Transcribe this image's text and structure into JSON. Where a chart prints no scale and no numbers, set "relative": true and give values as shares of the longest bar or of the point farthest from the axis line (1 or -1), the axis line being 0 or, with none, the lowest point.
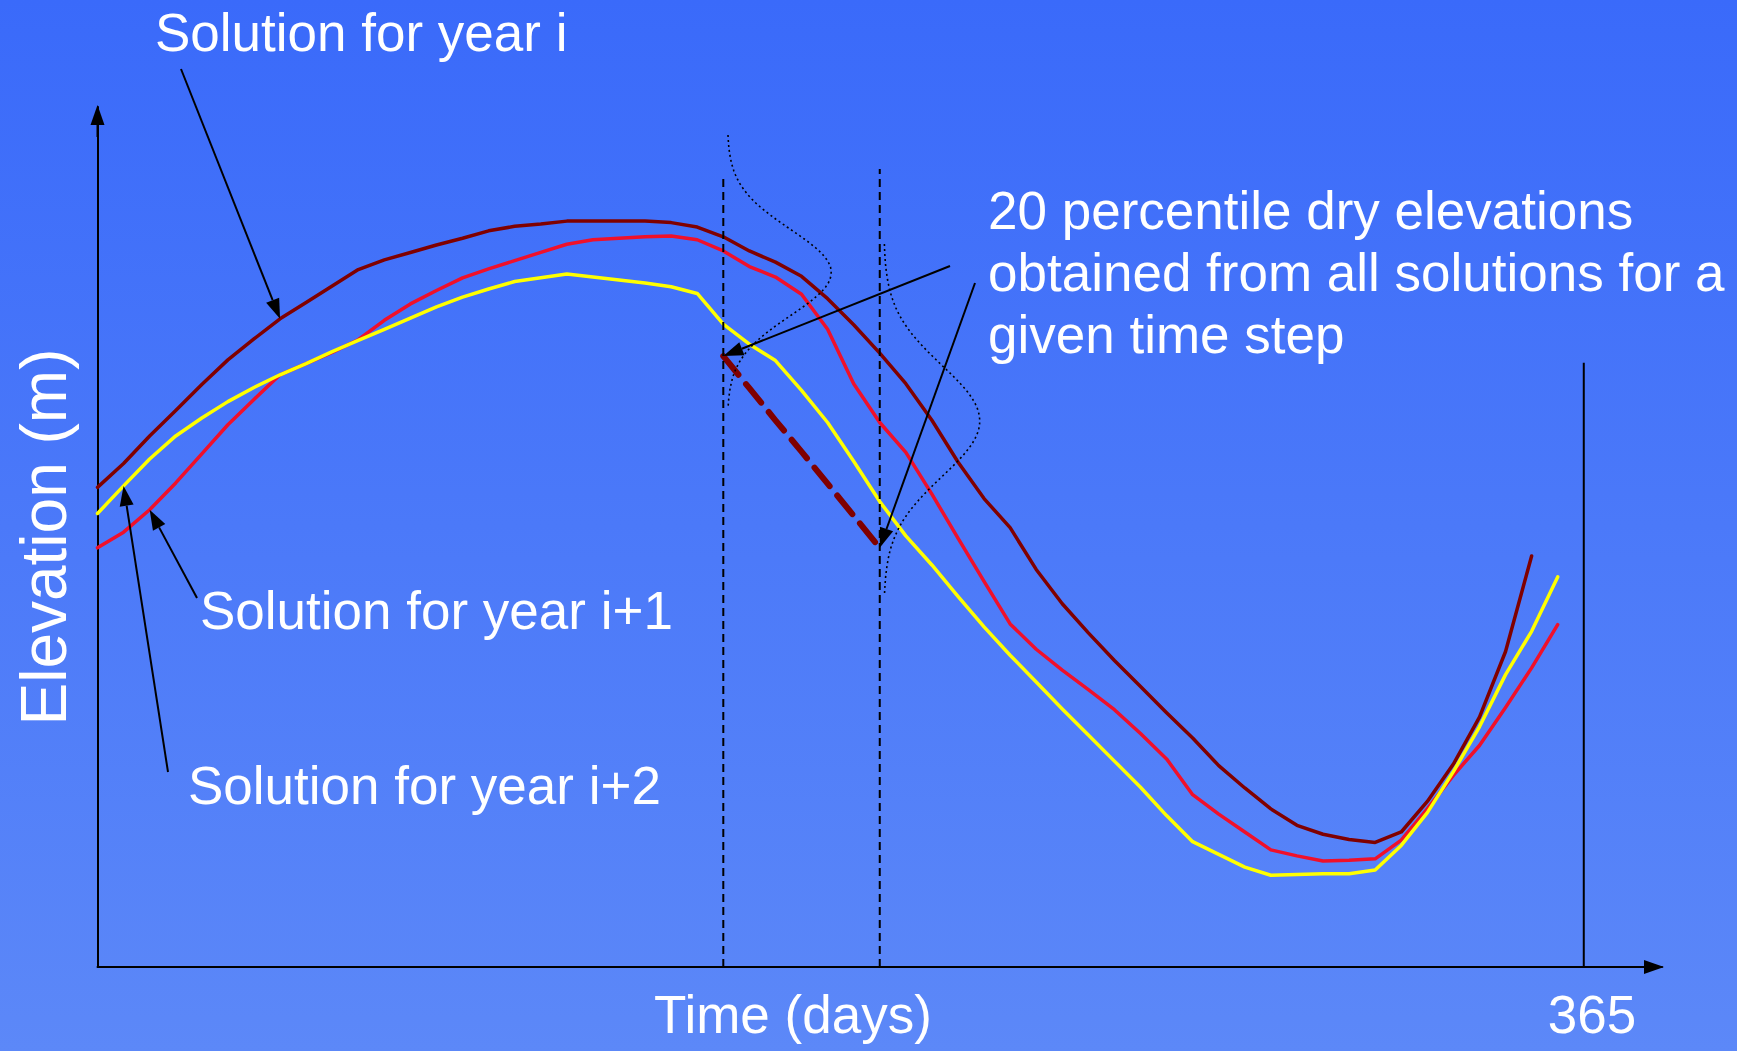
{
  "chart_data": {
    "type": "line",
    "relative": true,
    "xlabel": "Time (days)",
    "ylabel": "Elevation (m)",
    "marker": "none",
    "categories": [
      null,
      null,
      null,
      null,
      null,
      null,
      null,
      null,
      null,
      null,
      null,
      null,
      null,
      null,
      null,
      null,
      null,
      null,
      null,
      null,
      null,
      null,
      null,
      null,
      null,
      null,
      null,
      null,
      null,
      null,
      null,
      null,
      null,
      null,
      null,
      null,
      null,
      null,
      null,
      null,
      null,
      null,
      null,
      null,
      null,
      null,
      null,
      null,
      null,
      null,
      null,
      null,
      null,
      null,
      null,
      null,
      null,
      null,
      null,
      null,
      null
    ],
    "series": [
      {
        "color": "#800000",
        "values": [
          0.643,
          0.675,
          0.712,
          0.746,
          0.781,
          0.814,
          0.842,
          0.869,
          0.891,
          0.913,
          0.935,
          0.948,
          0.958,
          0.968,
          0.977,
          0.987,
          0.993,
          0.996,
          1,
          1,
          1,
          1,
          0.998,
          0.992,
          0.979,
          0.96,
          0.945,
          0.926,
          0.896,
          0.861,
          0.823,
          0.782,
          0.733,
          0.677,
          0.628,
          0.589,
          0.533,
          0.487,
          0.448,
          0.411,
          0.376,
          0.341,
          0.307,
          0.27,
          0.24,
          0.212,
          0.19,
          0.178,
          0.171,
          0.167,
          0.181,
          0.222,
          0.272,
          0.335,
          0.423,
          0.551,
          null,
          null,
          null,
          null,
          null
        ]
      },
      {
        "color": "#f0102a",
        "values": [
          0.562,
          0.583,
          0.613,
          0.649,
          0.688,
          0.727,
          0.761,
          0.794,
          0.809,
          0.824,
          0.841,
          0.867,
          0.889,
          0.907,
          0.924,
          0.936,
          0.947,
          0.958,
          0.969,
          0.975,
          0.977,
          0.979,
          0.98,
          0.975,
          0.96,
          0.939,
          0.925,
          0.902,
          0.855,
          0.782,
          0.73,
          0.69,
          0.634,
          0.575,
          0.517,
          0.46,
          0.426,
          0.398,
          0.372,
          0.345,
          0.313,
          0.279,
          0.231,
          0.205,
          0.181,
          0.157,
          0.149,
          0.142,
          0.143,
          0.145,
          0.17,
          0.212,
          0.257,
          0.297,
          0.348,
          0.401,
          0.459,
          null,
          null,
          null,
          null
        ]
      },
      {
        "color": "#ffff00",
        "values": [
          0.608,
          0.645,
          0.681,
          0.712,
          0.736,
          0.758,
          0.777,
          0.794,
          0.809,
          0.825,
          0.84,
          0.855,
          0.87,
          0.885,
          0.898,
          0.909,
          0.919,
          0.924,
          0.929,
          0.925,
          0.921,
          0.917,
          0.912,
          0.903,
          0.862,
          0.835,
          0.813,
          0.773,
          0.73,
          0.678,
          0.624,
          0.578,
          0.539,
          0.497,
          0.456,
          0.418,
          0.382,
          0.346,
          0.311,
          0.276,
          0.241,
          0.203,
          0.168,
          0.151,
          0.134,
          0.123,
          0.124,
          0.125,
          0.125,
          0.13,
          0.163,
          0.207,
          0.262,
          0.322,
          0.392,
          0.45,
          0.523,
          null,
          null,
          null,
          null
        ]
      },
      {
        "color": "#800000",
        "line_style": "dashed",
        "values": [
          null,
          null,
          null,
          null,
          null,
          null,
          null,
          null,
          null,
          null,
          null,
          null,
          null,
          null,
          null,
          null,
          null,
          null,
          null,
          null,
          null,
          null,
          null,
          null,
          0.819,
          0.776,
          0.733,
          0.691,
          0.648,
          0.605,
          0.562,
          null,
          null,
          null,
          null,
          null,
          null,
          null,
          null,
          null,
          null,
          null,
          null,
          null,
          null,
          null,
          null,
          null,
          null,
          null,
          null,
          null,
          null,
          null,
          null,
          null,
          null,
          null,
          null,
          null,
          null
        ]
      }
    ],
    "annotations": [
      "Solution for year i",
      "Solution for year i+1",
      "Solution for year i+2",
      "20 percentile dry elevations\nobtained from all solutions for a\ngiven time step",
      "365"
    ]
  }
}
